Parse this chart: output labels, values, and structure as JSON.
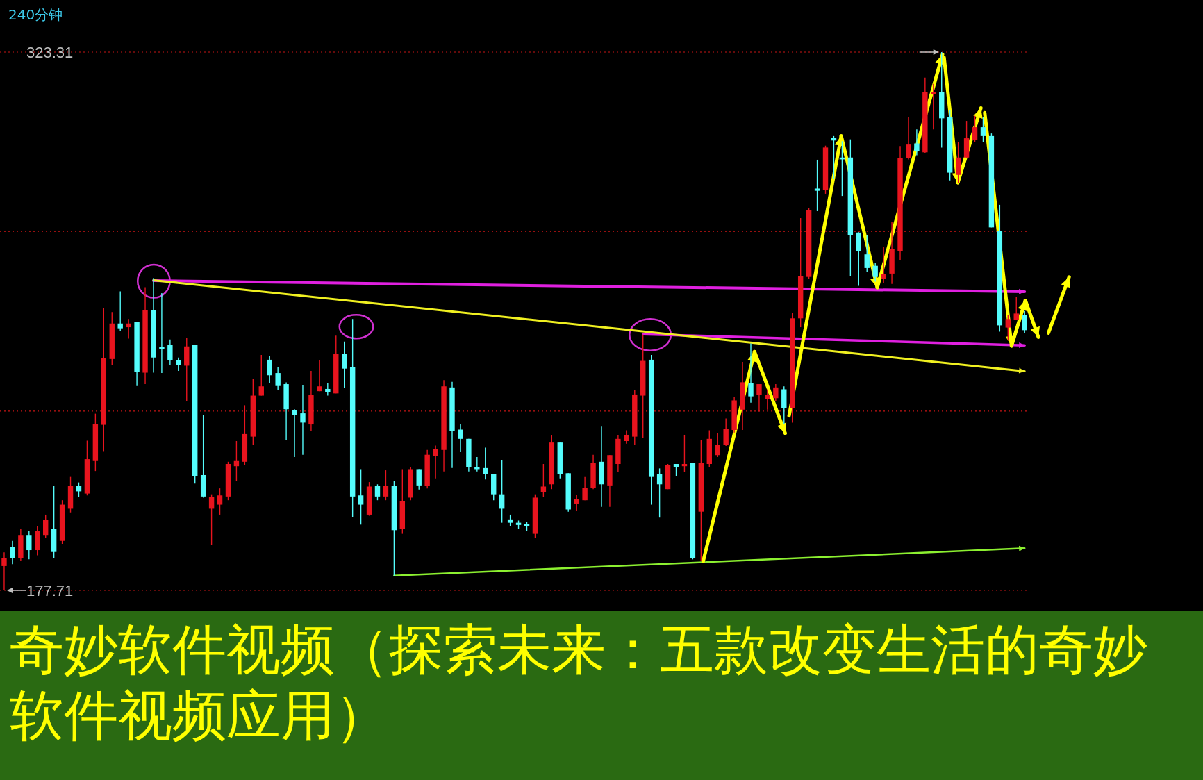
{
  "chart_data": {
    "type": "candlestick",
    "title": "奇妙软件视频（探索未来：五款改变生活的奇妙软件视频应用）",
    "subtitle": "240分钟",
    "categories": [
      null,
      null,
      null,
      null,
      null,
      null,
      null,
      null,
      null,
      null,
      null,
      null,
      null,
      null,
      null,
      null,
      null,
      null,
      null,
      null,
      null,
      null,
      null,
      null,
      null,
      null,
      null,
      null,
      null,
      null,
      null,
      null,
      null,
      null,
      null,
      null,
      null,
      null,
      null,
      null,
      null,
      null,
      null,
      null,
      null,
      null,
      null,
      null,
      null,
      null,
      null,
      null,
      null,
      null,
      null,
      null,
      null,
      null,
      null,
      null,
      null,
      null,
      null,
      null,
      null,
      null,
      null,
      null,
      null,
      null,
      null,
      null,
      null,
      null,
      null,
      null,
      null,
      null,
      null,
      null,
      null,
      null,
      null,
      null,
      null,
      null,
      null,
      null,
      null,
      null,
      null,
      null,
      null,
      null,
      null,
      null,
      null,
      null,
      null,
      null,
      null,
      null,
      null,
      null,
      null,
      null,
      null,
      null,
      null,
      null,
      null,
      null,
      null,
      null,
      null,
      null,
      null,
      null,
      null,
      null,
      null,
      null,
      null,
      null
    ],
    "ohlc": [
      [
        184.3,
        188.0,
        177.71,
        186.4
      ],
      [
        189.5,
        191.1,
        184.8,
        186.4
      ],
      [
        186.5,
        194.3,
        185.6,
        192.7
      ],
      [
        192.7,
        193.8,
        186.1,
        188.6
      ],
      [
        188.6,
        195.1,
        187.2,
        193.8
      ],
      [
        192.7,
        198.2,
        191.9,
        196.8
      ],
      [
        194.3,
        205.9,
        186.5,
        188.1
      ],
      [
        191.1,
        202.1,
        190.3,
        200.9
      ],
      [
        199.8,
        208.4,
        198.8,
        205.9
      ],
      [
        205.9,
        206.9,
        202.9,
        204.5
      ],
      [
        203.9,
        218.2,
        203.4,
        213.2
      ],
      [
        212.7,
        225.5,
        210.0,
        222.8
      ],
      [
        222.5,
        254.0,
        215.2,
        240.6
      ],
      [
        240.3,
        253.0,
        238.7,
        249.9
      ],
      [
        249.9,
        258.6,
        247.8,
        248.6
      ],
      [
        248.9,
        251.1,
        245.8,
        249.9
      ],
      [
        250.4,
        250.4,
        233.0,
        236.8
      ],
      [
        236.6,
        259.7,
        233.5,
        253.5
      ],
      [
        253.5,
        262.2,
        236.6,
        240.7
      ],
      [
        243.6,
        258.1,
        236.5,
        243.0
      ],
      [
        244.2,
        245.6,
        238.7,
        240.0
      ],
      [
        240.0,
        240.7,
        237.1,
        238.7
      ],
      [
        238.5,
        246.0,
        228.8,
        243.7
      ],
      [
        244.1,
        244.2,
        206.6,
        208.6
      ],
      [
        208.9,
        225.1,
        202.8,
        203.1
      ],
      [
        199.8,
        203.7,
        190.0,
        202.9
      ],
      [
        200.9,
        205.3,
        198.2,
        203.4
      ],
      [
        203.1,
        212.5,
        202.1,
        211.9
      ],
      [
        211.3,
        218.1,
        207.3,
        212.7
      ],
      [
        212.5,
        227.8,
        211.6,
        220.0
      ],
      [
        219.3,
        234.9,
        217.0,
        230.4
      ],
      [
        230.4,
        241.4,
        230.4,
        232.9
      ],
      [
        240.1,
        241.1,
        233.7,
        235.9
      ],
      [
        236.5,
        238.1,
        231.9,
        233.0
      ],
      [
        233.5,
        234.0,
        218.4,
        226.7
      ],
      [
        226.4,
        226.7,
        213.8,
        225.1
      ],
      [
        225.6,
        233.3,
        214.4,
        223.1
      ],
      [
        222.6,
        237.1,
        220.9,
        230.5
      ],
      [
        231.6,
        240.1,
        231.6,
        232.9
      ],
      [
        232.2,
        233.7,
        230.4,
        231.3
      ],
      [
        231.0,
        246.6,
        231.0,
        241.7
      ],
      [
        241.7,
        245.0,
        232.4,
        237.7
      ],
      [
        238.1,
        251.1,
        197.6,
        203.1
      ],
      [
        203.4,
        210.5,
        195.5,
        200.9
      ],
      [
        198.2,
        207.0,
        197.9,
        205.8
      ],
      [
        205.9,
        206.4,
        202.1,
        203.1
      ],
      [
        203.1,
        210.2,
        202.1,
        205.9
      ],
      [
        205.9,
        207.3,
        181.7,
        194.0
      ],
      [
        194.3,
        210.5,
        193.0,
        201.8
      ],
      [
        202.8,
        211.1,
        202.1,
        210.5
      ],
      [
        210.5,
        210.5,
        205.0,
        206.1
      ],
      [
        205.9,
        215.7,
        205.3,
        214.4
      ],
      [
        214.1,
        216.9,
        208.0,
        216.0
      ],
      [
        215.7,
        234.6,
        209.9,
        232.9
      ],
      [
        232.6,
        234.1,
        210.8,
        220.9
      ],
      [
        221.2,
        222.6,
        215.1,
        218.7
      ],
      [
        218.7,
        218.7,
        209.9,
        211.1
      ],
      [
        211.1,
        213.8,
        209.9,
        210.5
      ],
      [
        210.8,
        216.3,
        207.7,
        209.2
      ],
      [
        209.2,
        209.2,
        202.1,
        203.7
      ],
      [
        203.7,
        212.9,
        196.0,
        199.8
      ],
      [
        196.9,
        198.2,
        195.1,
        196.0
      ],
      [
        196.0,
        196.6,
        194.3,
        195.4
      ],
      [
        195.7,
        196.3,
        193.8,
        195.1
      ],
      [
        193.0,
        203.7,
        191.9,
        202.8
      ],
      [
        204.2,
        211.9,
        202.9,
        205.8
      ],
      [
        206.4,
        219.6,
        205.1,
        217.7
      ],
      [
        217.7,
        217.7,
        208.0,
        209.1
      ],
      [
        209.4,
        209.4,
        199.0,
        199.6
      ],
      [
        201.2,
        203.6,
        199.3,
        202.5
      ],
      [
        202.1,
        208.4,
        202.1,
        205.5
      ],
      [
        205.5,
        214.4,
        205.1,
        212.2
      ],
      [
        212.5,
        222.0,
        200.3,
        206.4
      ],
      [
        206.1,
        214.3,
        200.3,
        214.3
      ],
      [
        211.9,
        219.8,
        209.7,
        218.7
      ],
      [
        218.1,
        221.0,
        217.4,
        219.8
      ],
      [
        219.3,
        231.8,
        217.1,
        230.7
      ],
      [
        230.4,
        246.9,
        219.0,
        239.8
      ],
      [
        240.1,
        241.4,
        200.9,
        208.4
      ],
      [
        209.1,
        210.7,
        197.4,
        206.4
      ],
      [
        205.1,
        211.9,
        205.1,
        211.6
      ],
      [
        211.9,
        211.9,
        208.7,
        211.0
      ],
      [
        211.3,
        219.8,
        209.7,
        211.9
      ],
      [
        212.2,
        212.2,
        186.1,
        186.4
      ],
      [
        199.0,
        218.4,
        185.6,
        212.2
      ],
      [
        211.9,
        221.0,
        211.0,
        218.7
      ],
      [
        214.3,
        220.3,
        213.8,
        217.1
      ],
      [
        217.1,
        224.2,
        216.8,
        221.4
      ],
      [
        221.1,
        230.0,
        220.4,
        229.1
      ],
      [
        226.6,
        239.5,
        221.1,
        234.0
      ],
      [
        233.8,
        244.5,
        228.5,
        230.2
      ],
      [
        230.5,
        233.5,
        226.1,
        233.5
      ],
      [
        229.4,
        232.1,
        226.6,
        230.5
      ],
      [
        229.7,
        233.5,
        228.8,
        232.6
      ],
      [
        232.1,
        232.9,
        222.8,
        227.0
      ],
      [
        227.0,
        252.7,
        223.1,
        251.3
      ],
      [
        251.3,
        278.4,
        248.9,
        262.8
      ],
      [
        262.5,
        281.1,
        261.9,
        280.5
      ],
      [
        286.4,
        294.2,
        280.3,
        285.8
      ],
      [
        286.1,
        298.0,
        285.0,
        297.5
      ],
      [
        300.2,
        300.6,
        289.1,
        299.4
      ],
      [
        294.8,
        299.2,
        284.4,
        294.3
      ],
      [
        294.8,
        299.7,
        262.8,
        273.8
      ],
      [
        274.5,
        274.6,
        260.1,
        269.4
      ],
      [
        268.6,
        273.7,
        263.8,
        264.9
      ],
      [
        265.5,
        266.3,
        261.2,
        262.5
      ],
      [
        261.9,
        270.7,
        260.8,
        263.3
      ],
      [
        263.4,
        277.3,
        260.6,
        270.1
      ],
      [
        269.4,
        297.9,
        267.1,
        294.6
      ],
      [
        294.6,
        305.7,
        294.3,
        298.3
      ],
      [
        298.6,
        302.4,
        295.4,
        296.5
      ],
      [
        296.2,
        316.4,
        295.9,
        312.6
      ],
      [
        312.0,
        314.7,
        302.4,
        312.6
      ],
      [
        312.6,
        323.31,
        297.5,
        305.4
      ],
      [
        305.8,
        307.6,
        288.6,
        290.7
      ],
      [
        290.1,
        298.9,
        287.9,
        294.8
      ],
      [
        294.8,
        304.7,
        294.8,
        300.0
      ],
      [
        299.5,
        306.1,
        298.9,
        303.0
      ],
      [
        303.0,
        305.7,
        298.9,
        300.6
      ],
      [
        300.6,
        301.3,
        275.9,
        275.9
      ],
      [
        274.9,
        282.0,
        247.7,
        249.4
      ],
      [
        248.8,
        252.2,
        245.3,
        251.1
      ],
      [
        250.9,
        257.0,
        250.9,
        252.6
      ],
      [
        252.2,
        253.3,
        247.4,
        248.1
      ]
    ],
    "colors": [
      "#e8141e",
      "#54fcfc",
      "#e8141e",
      "#54fcfc",
      "#e8141e",
      "#e8141e",
      "#54fcfc",
      "#e8141e",
      "#e8141e",
      "#54fcfc",
      "#e8141e",
      "#e8141e",
      "#e8141e",
      "#e8141e",
      "#54fcfc",
      "#e8141e",
      "#54fcfc",
      "#e8141e",
      "#54fcfc",
      "#54fcfc",
      "#54fcfc",
      "#54fcfc",
      "#e8141e",
      "#54fcfc",
      "#54fcfc",
      "#e8141e",
      "#e8141e",
      "#e8141e",
      "#e8141e",
      "#e8141e",
      "#e8141e",
      "#e8141e",
      "#54fcfc",
      "#54fcfc",
      "#54fcfc",
      "#54fcfc",
      "#54fcfc",
      "#e8141e",
      "#e8141e",
      "#54fcfc",
      "#e8141e",
      "#54fcfc",
      "#54fcfc",
      "#54fcfc",
      "#e8141e",
      "#54fcfc",
      "#e8141e",
      "#54fcfc",
      "#e8141e",
      "#e8141e",
      "#54fcfc",
      "#e8141e",
      "#e8141e",
      "#e8141e",
      "#54fcfc",
      "#54fcfc",
      "#54fcfc",
      "#54fcfc",
      "#54fcfc",
      "#54fcfc",
      "#54fcfc",
      "#54fcfc",
      "#54fcfc",
      "#54fcfc",
      "#e8141e",
      "#e8141e",
      "#e8141e",
      "#54fcfc",
      "#54fcfc",
      "#e8141e",
      "#e8141e",
      "#e8141e",
      "#54fcfc",
      "#e8141e",
      "#e8141e",
      "#e8141e",
      "#e8141e",
      "#e8141e",
      "#54fcfc",
      "#54fcfc",
      "#e8141e",
      "#54fcfc",
      "#e8141e",
      "#54fcfc",
      "#e8141e",
      "#e8141e",
      "#e8141e",
      "#e8141e",
      "#e8141e",
      "#e8141e",
      "#54fcfc",
      "#e8141e",
      "#e8141e",
      "#e8141e",
      "#54fcfc",
      "#e8141e",
      "#e8141e",
      "#e8141e",
      "#54fcfc",
      "#e8141e",
      "#54fcfc",
      "#54fcfc",
      "#54fcfc",
      "#54fcfc",
      "#54fcfc",
      "#54fcfc",
      "#e8141e",
      "#e8141e",
      "#e8141e",
      "#e8141e",
      "#54fcfc",
      "#e8141e",
      "#e8141e",
      "#54fcfc",
      "#54fcfc",
      "#e8141e",
      "#e8141e",
      "#e8141e",
      "#54fcfc",
      "#54fcfc",
      "#54fcfc",
      "#e8141e",
      "#e8141e",
      "#54fcfc"
    ],
    "ylim": [
      177.71,
      323.31
    ],
    "ref_lines": [
      {
        "axis": "y",
        "value": 323.31,
        "color": "#c81414",
        "line_style": "dotted"
      },
      {
        "axis": "y",
        "value": 274.8,
        "color": "#c81414",
        "line_style": "dotted"
      },
      {
        "axis": "y",
        "value": 226.2,
        "color": "#c81414",
        "line_style": "dotted"
      },
      {
        "axis": "y",
        "value": 177.71,
        "color": "#c81414",
        "line_style": "dotted"
      }
    ],
    "yticks": [
      177.71,
      323.31
    ],
    "series": [
      {
        "type": "line",
        "color": "#e020e0",
        "values": [
          null,
          null,
          null,
          null,
          null,
          null,
          null,
          null,
          null,
          null,
          null,
          null,
          null,
          null,
          null,
          null,
          null,
          null,
          261.5,
          null,
          null,
          null,
          null,
          null,
          null,
          null,
          null,
          null,
          null,
          null,
          null,
          null,
          null,
          null,
          null,
          null,
          null,
          null,
          null,
          null,
          null,
          null,
          null,
          null,
          null,
          null,
          null,
          null,
          null,
          null,
          null,
          null,
          null,
          null,
          null,
          null,
          null,
          null,
          null,
          null,
          null,
          null,
          null,
          null,
          null,
          null,
          null,
          null,
          null,
          null,
          null,
          null,
          null,
          null,
          null,
          null,
          null,
          null,
          null,
          null,
          null,
          null,
          null,
          null,
          null,
          null,
          null,
          null,
          null,
          null,
          null,
          null,
          null,
          null,
          null,
          null,
          null,
          null,
          null,
          null,
          null,
          null,
          null,
          null,
          null,
          null,
          null,
          null,
          null,
          null,
          null,
          null,
          null,
          null,
          null,
          null,
          null,
          null,
          null,
          null,
          null,
          null,
          null,
          258.5
        ]
      },
      {
        "type": "line",
        "color": "#e020e0",
        "values": [
          null,
          null,
          null,
          null,
          null,
          null,
          null,
          null,
          null,
          null,
          null,
          null,
          null,
          null,
          null,
          null,
          null,
          null,
          null,
          null,
          null,
          null,
          null,
          null,
          null,
          null,
          null,
          null,
          null,
          null,
          null,
          null,
          null,
          null,
          null,
          null,
          null,
          null,
          null,
          null,
          null,
          null,
          null,
          null,
          null,
          null,
          null,
          null,
          null,
          null,
          null,
          null,
          null,
          null,
          null,
          null,
          null,
          null,
          null,
          null,
          null,
          null,
          null,
          null,
          null,
          null,
          null,
          null,
          null,
          null,
          null,
          null,
          null,
          null,
          null,
          null,
          null,
          247.0,
          null,
          null,
          null,
          null,
          null,
          null,
          null,
          null,
          null,
          null,
          null,
          null,
          null,
          null,
          null,
          null,
          null,
          null,
          null,
          null,
          null,
          null,
          null,
          null,
          null,
          null,
          null,
          null,
          null,
          null,
          null,
          null,
          null,
          null,
          null,
          null,
          null,
          null,
          null,
          null,
          null,
          null,
          null,
          null,
          null,
          244.0
        ]
      },
      {
        "type": "line",
        "color": "#f0f020",
        "values": [
          null,
          null,
          null,
          null,
          null,
          null,
          null,
          null,
          null,
          null,
          null,
          null,
          null,
          null,
          null,
          null,
          null,
          null,
          261.6,
          null,
          null,
          null,
          null,
          null,
          null,
          null,
          null,
          null,
          null,
          null,
          null,
          null,
          null,
          null,
          null,
          null,
          null,
          null,
          null,
          null,
          null,
          null,
          null,
          null,
          null,
          null,
          null,
          null,
          null,
          null,
          null,
          null,
          null,
          null,
          null,
          null,
          null,
          null,
          null,
          null,
          null,
          null,
          null,
          null,
          null,
          null,
          null,
          null,
          null,
          null,
          null,
          null,
          null,
          null,
          null,
          null,
          null,
          null,
          null,
          null,
          null,
          null,
          null,
          null,
          null,
          null,
          null,
          null,
          null,
          null,
          null,
          null,
          null,
          null,
          null,
          null,
          null,
          null,
          null,
          null,
          null,
          null,
          null,
          null,
          null,
          null,
          null,
          null,
          null,
          null,
          null,
          null,
          null,
          null,
          null,
          null,
          null,
          null,
          null,
          null,
          null,
          null,
          null,
          237.0
        ]
      },
      {
        "type": "line",
        "color": "#8cf030",
        "values": [
          null,
          null,
          null,
          null,
          null,
          null,
          null,
          null,
          null,
          null,
          null,
          null,
          null,
          null,
          null,
          null,
          null,
          null,
          null,
          null,
          null,
          null,
          null,
          null,
          null,
          null,
          null,
          null,
          null,
          null,
          null,
          null,
          null,
          null,
          null,
          null,
          null,
          null,
          null,
          null,
          null,
          null,
          null,
          null,
          null,
          null,
          null,
          181.7,
          null,
          null,
          null,
          null,
          null,
          null,
          null,
          null,
          null,
          null,
          null,
          null,
          null,
          null,
          null,
          null,
          null,
          null,
          null,
          null,
          null,
          null,
          null,
          null,
          null,
          null,
          null,
          null,
          null,
          null,
          null,
          null,
          null,
          null,
          null,
          null,
          null,
          null,
          null,
          null,
          null,
          null,
          null,
          null,
          null,
          null,
          null,
          null,
          null,
          null,
          null,
          null,
          null,
          null,
          null,
          null,
          null,
          null,
          null,
          null,
          null,
          null,
          null,
          null,
          null,
          null,
          null,
          null,
          null,
          null,
          null,
          null,
          null,
          null,
          null,
          189.1
        ]
      }
    ]
  }
}
